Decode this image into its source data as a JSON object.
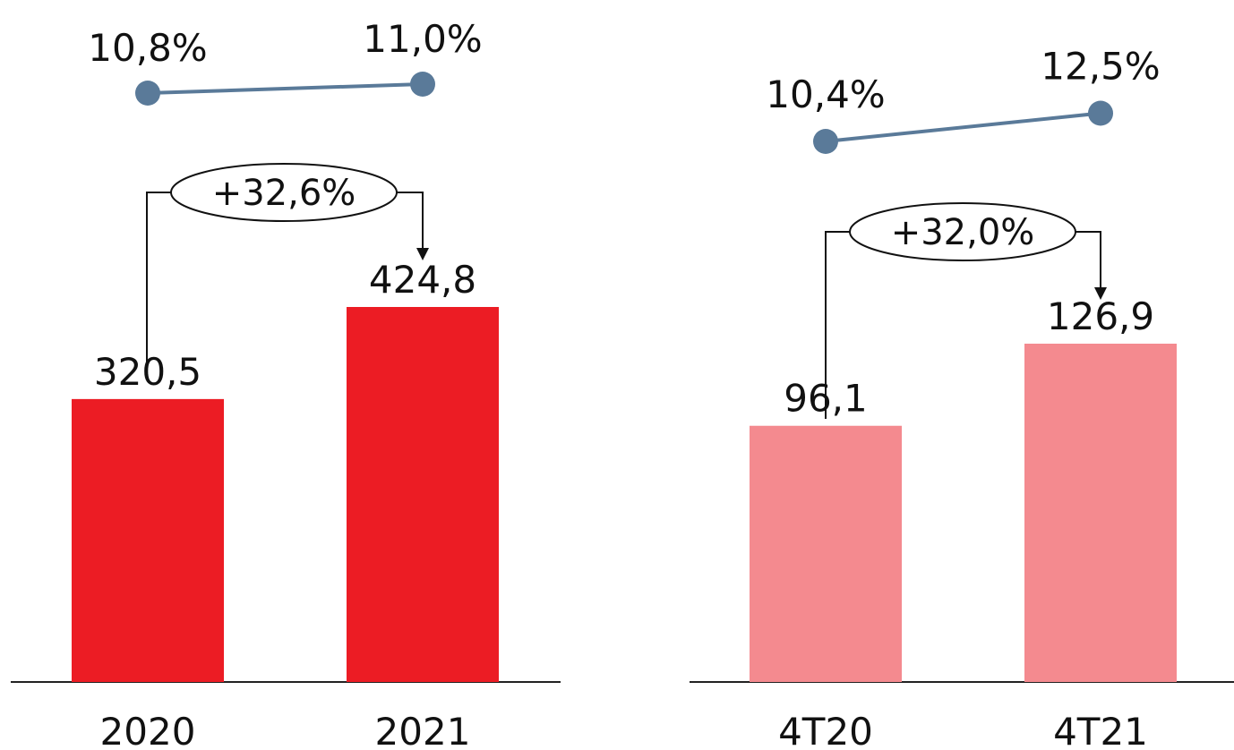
{
  "chart_data": [
    {
      "type": "bar",
      "categories": [
        "2020",
        "2021"
      ],
      "values": [
        320.5,
        424.8
      ],
      "value_labels": [
        "320,5",
        "424,8"
      ],
      "bar_color": "#ec1c24",
      "ylim": [
        0,
        424.8
      ],
      "line_series": {
        "values": [
          10.8,
          11.0
        ],
        "labels": [
          "10,8%",
          "11,0%"
        ],
        "color": "#5a7a99"
      },
      "change_annotation": "+32,6%"
    },
    {
      "type": "bar",
      "categories": [
        "4T20",
        "4T21"
      ],
      "values": [
        96.1,
        126.9
      ],
      "value_labels": [
        "96,1",
        "126,9"
      ],
      "bar_color": "#f48a8f",
      "ylim": [
        0,
        126.9
      ],
      "line_series": {
        "values": [
          10.4,
          12.5
        ],
        "labels": [
          "10,4%",
          "12,5%"
        ],
        "color": "#5a7a99"
      },
      "change_annotation": "+32,0%"
    }
  ]
}
